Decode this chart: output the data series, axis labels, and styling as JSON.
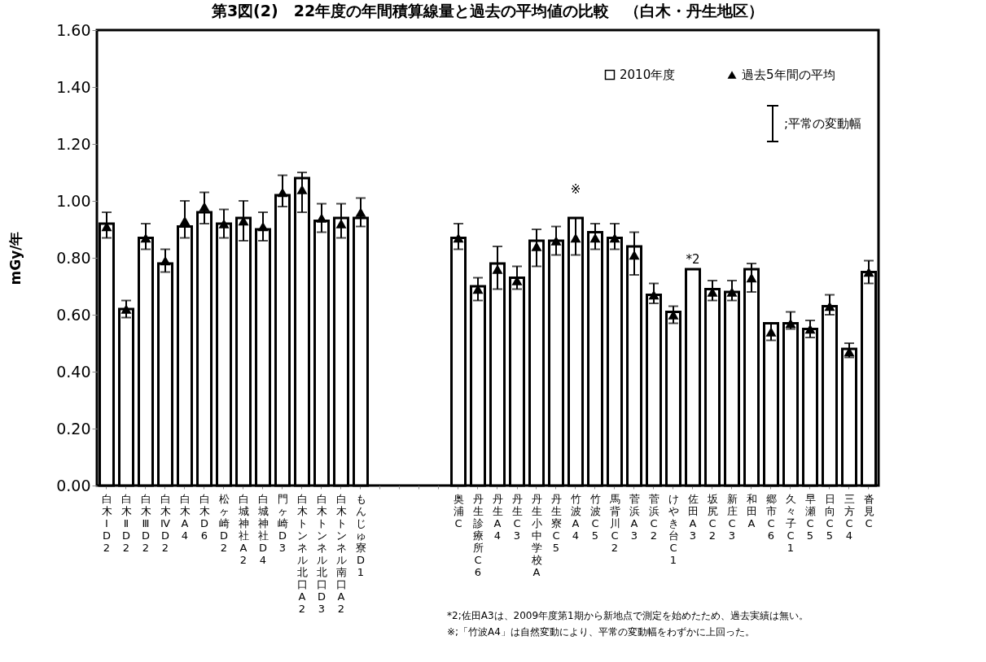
{
  "chart_data": {
    "type": "bar",
    "title": "第3図(2)　22年度の年間積算線量と過去の平均値の比較　（白木・丹生地区）",
    "ylabel": "mGy/年",
    "categories": [
      "白木ⅠD2",
      "白木ⅡD2",
      "白木ⅢD2",
      "白木ⅣD2",
      "白木A4",
      "白木D6",
      "松ヶ崎D2",
      "白城神社A2",
      "白城神社D4",
      "門ヶ崎D3",
      "白木トンネル北口A2",
      "白木トンネル北口D3",
      "白木トンネル南口A2",
      "もんじゅ寮D1",
      null,
      null,
      null,
      null,
      "奥浦C",
      "丹生診療所C6",
      "丹生A4",
      "丹生C3",
      "丹生小中学校A",
      "丹生寮C5",
      "竹波A4",
      "竹波C5",
      "馬背川C2",
      "菅浜A3",
      "菅浜C2",
      "けやき台C1",
      "佐田A3",
      "坂尻C2",
      "新庄C3",
      "和田A",
      "郷市C6",
      "久々子C1",
      "早瀬C5",
      "日向C5",
      "三方C4",
      "沓見C"
    ],
    "series": [
      {
        "name": "2010年度",
        "color": "#ffffff",
        "values": [
          0.92,
          0.62,
          0.87,
          0.78,
          0.91,
          0.96,
          0.92,
          0.94,
          0.9,
          1.02,
          1.08,
          0.93,
          0.94,
          0.94,
          null,
          null,
          null,
          null,
          0.87,
          0.7,
          0.78,
          0.73,
          0.86,
          0.86,
          0.94,
          0.89,
          0.87,
          0.84,
          0.67,
          0.61,
          0.76,
          0.69,
          0.68,
          0.76,
          0.57,
          0.57,
          0.55,
          0.63,
          0.48,
          0.75
        ]
      },
      {
        "name": "過去5年間の平均",
        "type": "scatter",
        "color": "#000000",
        "marker": "triangle",
        "values": [
          0.91,
          0.62,
          0.87,
          0.79,
          0.93,
          0.98,
          0.92,
          0.93,
          0.91,
          1.03,
          1.04,
          0.94,
          0.92,
          0.96,
          null,
          null,
          null,
          null,
          0.87,
          0.69,
          0.76,
          0.72,
          0.84,
          0.86,
          0.87,
          0.87,
          0.87,
          0.81,
          0.67,
          0.6,
          null,
          0.68,
          0.68,
          0.73,
          0.54,
          0.57,
          0.55,
          0.63,
          0.47,
          0.75
        ],
        "errors": [
          [
            0.87,
            0.96
          ],
          [
            0.59,
            0.65
          ],
          [
            0.83,
            0.92
          ],
          [
            0.75,
            0.83
          ],
          [
            0.87,
            1.0
          ],
          [
            0.92,
            1.03
          ],
          [
            0.87,
            0.97
          ],
          [
            0.86,
            1.0
          ],
          [
            0.86,
            0.96
          ],
          [
            0.98,
            1.09
          ],
          [
            0.96,
            1.1
          ],
          [
            0.89,
            0.99
          ],
          [
            0.87,
            0.99
          ],
          [
            0.91,
            1.01
          ],
          null,
          null,
          null,
          null,
          [
            0.83,
            0.92
          ],
          [
            0.65,
            0.73
          ],
          [
            0.69,
            0.84
          ],
          [
            0.69,
            0.77
          ],
          [
            0.77,
            0.9
          ],
          [
            0.81,
            0.91
          ],
          [
            0.81,
            0.94
          ],
          [
            0.83,
            0.92
          ],
          [
            0.83,
            0.92
          ],
          [
            0.74,
            0.89
          ],
          [
            0.64,
            0.71
          ],
          [
            0.57,
            0.63
          ],
          null,
          [
            0.65,
            0.72
          ],
          [
            0.65,
            0.72
          ],
          [
            0.68,
            0.78
          ],
          [
            0.51,
            0.57
          ],
          [
            0.55,
            0.61
          ],
          [
            0.52,
            0.58
          ],
          [
            0.6,
            0.67
          ],
          [
            0.45,
            0.5
          ],
          [
            0.71,
            0.79
          ]
        ]
      }
    ],
    "ylim": [
      0,
      1.6
    ],
    "yticks": [
      {
        "value": 0,
        "label": "0.00"
      },
      {
        "value": 0.2,
        "label": "0.20"
      },
      {
        "value": 0.4,
        "label": "0.40"
      },
      {
        "value": 0.6,
        "label": "0.60"
      },
      {
        "value": 0.8,
        "label": "0.80"
      },
      {
        "value": 1.0,
        "label": "1.00"
      },
      {
        "value": 1.2,
        "label": "1.20"
      },
      {
        "value": 1.4,
        "label": "1.40"
      },
      {
        "value": 1.6,
        "label": "1.60"
      }
    ],
    "grid": false,
    "legend": "top right",
    "annotations": [
      "※",
      "*2",
      ";平常の変動幅",
      "*2;佐田A3は、2009年度第1期から新地点で測定を始めたため、過去実績は無い。",
      "※;「竹波A4」は自然変動により、平常の変動幅をわずかに上回った。"
    ]
  }
}
